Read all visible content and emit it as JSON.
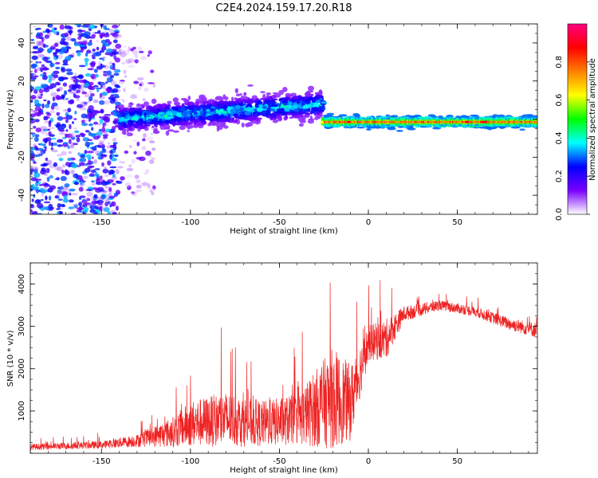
{
  "title": "C2E4.2024.159.17.20.R18",
  "chart_data": [
    {
      "type": "heatmap",
      "xlabel": "Height of straight line (km)",
      "ylabel": "Frequency (Hz)",
      "xlim": [
        -190,
        95
      ],
      "ylim": [
        -50,
        50
      ],
      "x_ticks": [
        -150,
        -100,
        -50,
        0,
        50
      ],
      "x_tick_labels": [
        "-150",
        "-100",
        "-50",
        "0",
        "50"
      ],
      "y_ticks": [
        -40,
        -20,
        0,
        20,
        40
      ],
      "y_tick_labels": [
        "-40",
        "-20",
        "0",
        "20",
        "40"
      ],
      "colorbar": {
        "label": "Normalized spectral amplitude",
        "range": [
          0,
          1
        ],
        "ticks": [
          0.0,
          0.2,
          0.4,
          0.6,
          0.8
        ],
        "tick_labels": [
          "0.0",
          "0.2",
          "0.4",
          "0.6",
          "0.8"
        ],
        "colormap": "rainbow",
        "stops": [
          "#ffffff",
          "#7a00ff",
          "#0000ff",
          "#00ffff",
          "#00ff00",
          "#ffff00",
          "#ff8000",
          "#ff0000",
          "#ff0080"
        ]
      },
      "regions": [
        {
          "x": [
            -190,
            -140
          ],
          "freq_center": 0,
          "freq_spread": 50,
          "amplitude": [
            0.05,
            0.35
          ]
        },
        {
          "x": [
            -140,
            -120
          ],
          "freq_center": 0,
          "freq_spread": 40,
          "amplitude": [
            0.02,
            0.15
          ]
        },
        {
          "x": [
            -140,
            -25
          ],
          "freq_center_start": 0,
          "freq_center_end": 8,
          "freq_spread": 6,
          "amplitude": [
            0.1,
            0.45
          ]
        },
        {
          "x": [
            -25,
            95
          ],
          "freq_center": -1.5,
          "freq_spread": 2.5,
          "amplitude": [
            0.3,
            0.9
          ]
        }
      ]
    },
    {
      "type": "line",
      "xlabel": "Height of straight line (km)",
      "ylabel": "SNR (10 * v/v)",
      "xlim": [
        -190,
        95
      ],
      "ylim": [
        0,
        4500
      ],
      "x_ticks": [
        -150,
        -100,
        -50,
        0,
        50
      ],
      "x_tick_labels": [
        "-150",
        "-100",
        "-50",
        "0",
        "50"
      ],
      "y_ticks": [
        1000,
        2000,
        3000,
        4000
      ],
      "y_tick_labels": [
        "1000",
        "2000",
        "3000",
        "4000"
      ],
      "color": "#ee2222",
      "envelope": [
        {
          "x": -190,
          "base": 150,
          "noise": 120
        },
        {
          "x": -150,
          "base": 200,
          "noise": 150
        },
        {
          "x": -130,
          "base": 300,
          "noise": 250
        },
        {
          "x": -110,
          "base": 500,
          "noise": 600
        },
        {
          "x": -100,
          "base": 700,
          "noise": 900
        },
        {
          "x": -80,
          "base": 800,
          "noise": 1100
        },
        {
          "x": -60,
          "base": 700,
          "noise": 900
        },
        {
          "x": -40,
          "base": 800,
          "noise": 1000
        },
        {
          "x": -20,
          "base": 1300,
          "noise": 2000
        },
        {
          "x": -10,
          "base": 1200,
          "noise": 1500
        },
        {
          "x": 0,
          "base": 2600,
          "noise": 700
        },
        {
          "x": 10,
          "base": 2700,
          "noise": 800
        },
        {
          "x": 20,
          "base": 3300,
          "noise": 300
        },
        {
          "x": 40,
          "base": 3500,
          "noise": 200
        },
        {
          "x": 60,
          "base": 3350,
          "noise": 200
        },
        {
          "x": 80,
          "base": 3050,
          "noise": 250
        },
        {
          "x": 95,
          "base": 2900,
          "noise": 300
        }
      ]
    }
  ]
}
